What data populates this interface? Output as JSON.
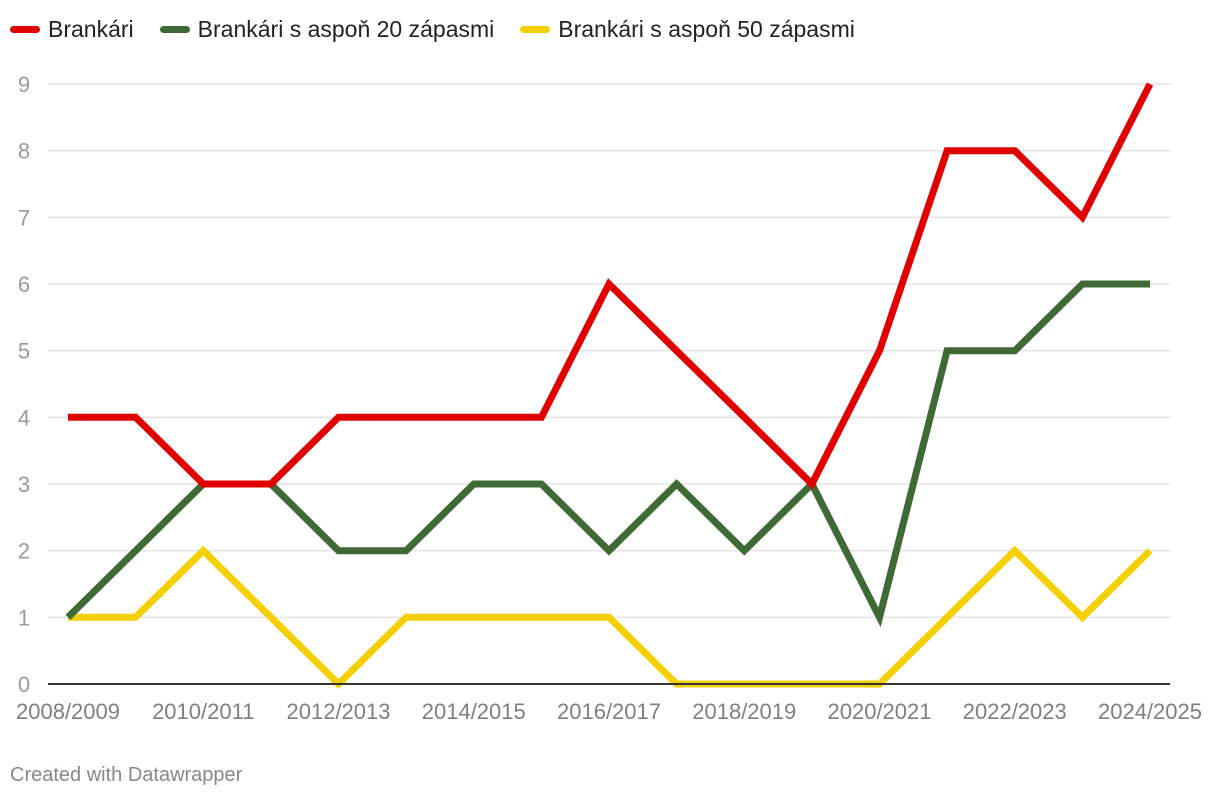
{
  "chart_data": {
    "type": "line",
    "x": [
      "2008/2009",
      "2009/2010",
      "2010/2011",
      "2011/2012",
      "2012/2013",
      "2013/2014",
      "2014/2015",
      "2015/2016",
      "2016/2017",
      "2017/2018",
      "2018/2019",
      "2019/2020",
      "2020/2021",
      "2021/2022",
      "2022/2023",
      "2023/2024",
      "2024/2025"
    ],
    "x_tick_labels": [
      "2008/2009",
      "2010/2011",
      "2012/2013",
      "2014/2015",
      "2016/2017",
      "2018/2019",
      "2020/2021",
      "2022/2023",
      "2024/2025"
    ],
    "y_ticks": [
      0,
      1,
      2,
      3,
      4,
      5,
      6,
      7,
      8,
      9
    ],
    "ylim": [
      0,
      9
    ],
    "grid": true,
    "legend_position": "top-left",
    "series": [
      {
        "name": "Brankári",
        "color": "#e00000",
        "values": [
          4,
          4,
          3,
          3,
          4,
          4,
          4,
          4,
          6,
          5,
          4,
          3,
          5,
          8,
          8,
          7,
          9
        ]
      },
      {
        "name": "Brankári s aspoň 20 zápasmi",
        "color": "#3f6a35",
        "values": [
          1,
          2,
          3,
          3,
          2,
          2,
          3,
          3,
          2,
          3,
          2,
          3,
          1,
          5,
          5,
          6,
          6
        ]
      },
      {
        "name": "Brankári s aspoň 50 zápasmi",
        "color": "#f5d000",
        "values": [
          1,
          1,
          2,
          1,
          0,
          1,
          1,
          1,
          1,
          0,
          0,
          0,
          0,
          1,
          2,
          1,
          2
        ]
      }
    ]
  },
  "footer": {
    "credit": "Created with Datawrapper"
  }
}
